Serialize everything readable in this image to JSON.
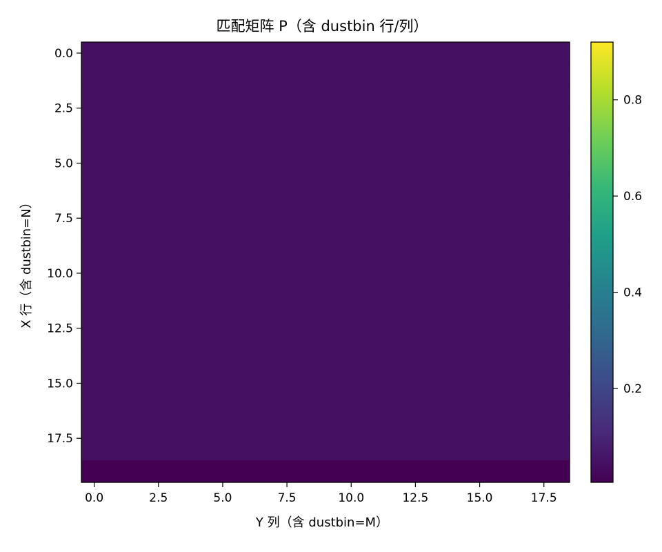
{
  "chart_data": {
    "type": "heatmap",
    "title": "匹配矩阵 P（含 dustbin 行/列）",
    "xlabel": "Y 列（含 dustbin=M）",
    "ylabel": "X 行（含 dustbin=N）",
    "rows": 20,
    "cols": 20,
    "xlim": [
      -0.5,
      18.5
    ],
    "ylim": [
      19.5,
      -0.5
    ],
    "inner_value": 0.045,
    "dustbin_row_value": 0.005,
    "dustbin_col_value": 0.005,
    "corner_value": 0.92,
    "x_ticks": [
      0.0,
      2.5,
      5.0,
      7.5,
      10.0,
      12.5,
      15.0,
      17.5
    ],
    "x_tick_labels": [
      "0.0",
      "2.5",
      "5.0",
      "7.5",
      "10.0",
      "12.5",
      "15.0",
      "17.5"
    ],
    "y_ticks": [
      0.0,
      2.5,
      5.0,
      7.5,
      10.0,
      12.5,
      15.0,
      17.5
    ],
    "y_tick_labels": [
      "0.0",
      "2.5",
      "5.0",
      "7.5",
      "10.0",
      "12.5",
      "15.0",
      "17.5"
    ],
    "colorbar": {
      "colormap": "viridis",
      "range": [
        0.005,
        0.92
      ],
      "ticks": [
        0.2,
        0.4,
        0.6,
        0.8
      ],
      "tick_labels": [
        "0.2",
        "0.4",
        "0.6",
        "0.8"
      ]
    }
  }
}
